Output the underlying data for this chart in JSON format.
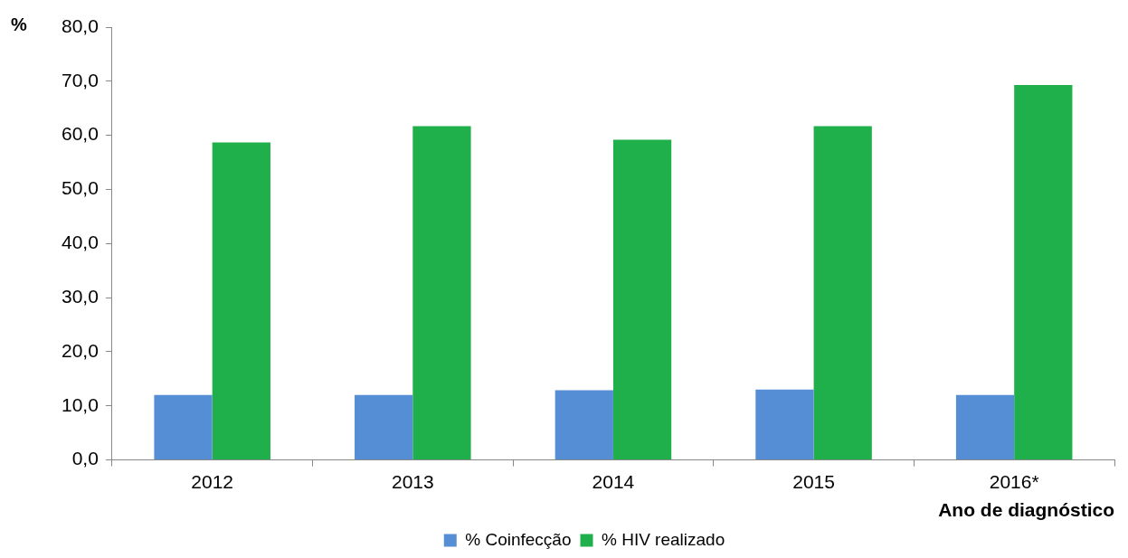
{
  "chart_data": {
    "type": "bar",
    "xlabel": "Ano de diagnóstico",
    "ylabel": "%",
    "categories": [
      "2012",
      "2013",
      "2014",
      "2015",
      "2016*"
    ],
    "series": [
      {
        "name": "% Coinfecção",
        "color": "#558ed5",
        "values": [
          12.0,
          12.0,
          12.9,
          13.0,
          12.0
        ]
      },
      {
        "name": "% HIV realizado",
        "color": "#20b04b",
        "values": [
          58.7,
          61.7,
          59.2,
          61.7,
          69.3
        ]
      }
    ],
    "ylim": [
      0,
      80
    ],
    "yticks": [
      {
        "value": 0,
        "label": "0,0"
      },
      {
        "value": 10,
        "label": "10,0"
      },
      {
        "value": 20,
        "label": "20,0"
      },
      {
        "value": 30,
        "label": "30,0"
      },
      {
        "value": 40,
        "label": "40,0"
      },
      {
        "value": 50,
        "label": "50,0"
      },
      {
        "value": 60,
        "label": "60,0"
      },
      {
        "value": 70,
        "label": "70,0"
      },
      {
        "value": 80,
        "label": "80,0"
      }
    ],
    "grid": false,
    "legend": "bottom"
  }
}
